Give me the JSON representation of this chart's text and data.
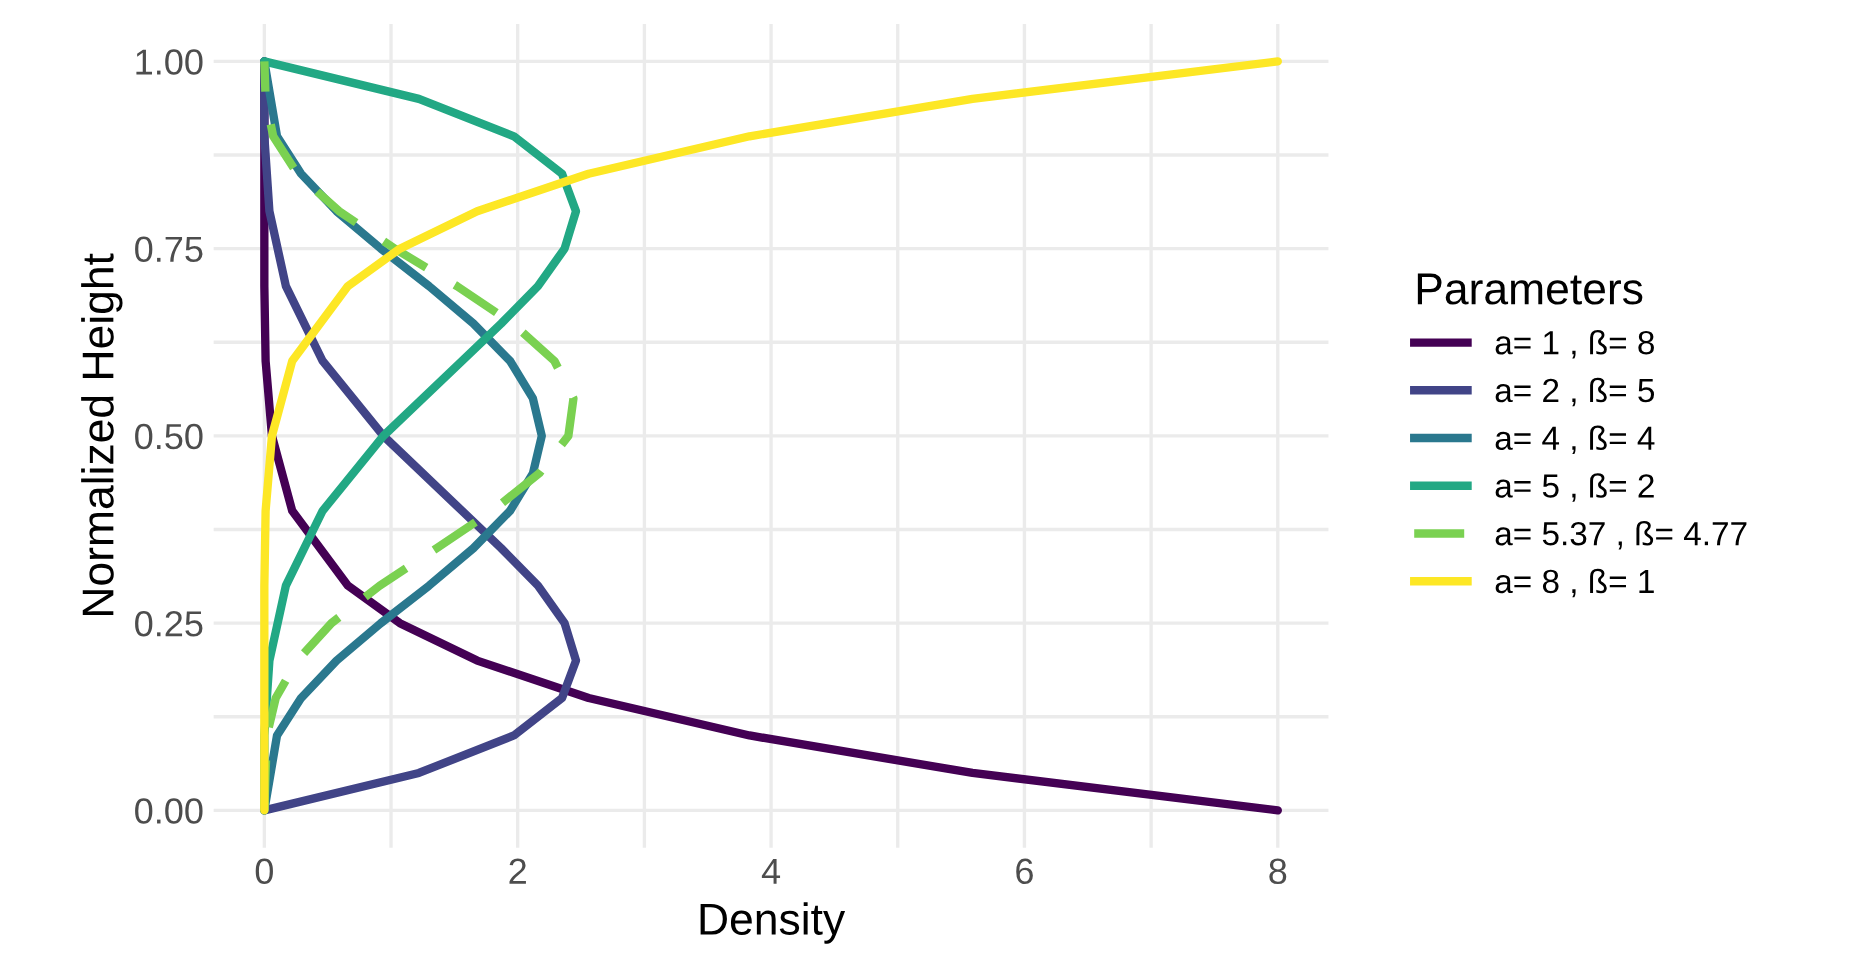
{
  "chart_data": {
    "type": "line",
    "xlabel": "Density",
    "ylabel": "Normalized Height",
    "legend_title": "Parameters",
    "legend": "right",
    "grid": true,
    "xlim": [
      -0.4,
      8.4
    ],
    "xticks": [
      0,
      {
        "value": 1,
        "label": null
      },
      2,
      {
        "value": 3,
        "label": null
      },
      4,
      {
        "value": 5,
        "label": null
      },
      6,
      {
        "value": 7,
        "label": null
      },
      8
    ],
    "ylim": [
      -0.05,
      1.05
    ],
    "yticks": [
      {
        "value": 0,
        "label": "0.00"
      },
      {
        "value": 0.125,
        "label": null
      },
      {
        "value": 0.25,
        "label": "0.25"
      },
      {
        "value": 0.375,
        "label": null
      },
      {
        "value": 0.5,
        "label": "0.50"
      },
      {
        "value": 0.625,
        "label": null
      },
      {
        "value": 0.75,
        "label": "0.75"
      },
      {
        "value": 0.875,
        "label": null
      },
      {
        "value": 1,
        "label": "1.00"
      }
    ],
    "series": [
      {
        "name": "a= 1 , ß= 8",
        "color": "#440154",
        "line_style": "solid",
        "x": [
          8,
          5.59,
          3.83,
          2.56,
          1.68,
          1.07,
          0.66,
          0.22,
          0.06,
          0.01,
          0,
          0,
          0
        ],
        "values": [
          0,
          0.05,
          0.1,
          0.15,
          0.2,
          0.25,
          0.3,
          0.4,
          0.5,
          0.6,
          0.7,
          0.8,
          1
        ]
      },
      {
        "name": "a= 2 , ß= 5",
        "color": "#414487",
        "line_style": "solid",
        "x": [
          0,
          1.22,
          1.97,
          2.35,
          2.46,
          2.37,
          2.16,
          1.87,
          1.56,
          0.94,
          0.46,
          0.17,
          0.04,
          0,
          0
        ],
        "values": [
          0,
          0.05,
          0.1,
          0.15,
          0.2,
          0.25,
          0.3,
          0.35,
          0.4,
          0.5,
          0.6,
          0.7,
          0.8,
          0.9,
          1
        ]
      },
      {
        "name": "a= 4 , ß= 4",
        "color": "#2A788E",
        "line_style": "solid",
        "x": [
          0,
          0.1,
          0.29,
          0.57,
          0.92,
          1.3,
          1.65,
          1.94,
          2.12,
          2.19,
          2.12,
          1.94,
          1.65,
          1.3,
          0.92,
          0.57,
          0.29,
          0.1,
          0
        ],
        "values": [
          0,
          0.1,
          0.15,
          0.2,
          0.25,
          0.3,
          0.35,
          0.4,
          0.45,
          0.5,
          0.55,
          0.6,
          0.65,
          0.7,
          0.75,
          0.8,
          0.85,
          0.9,
          1
        ]
      },
      {
        "name": "a= 5 , ß= 2",
        "color": "#22A884",
        "line_style": "solid",
        "x": [
          0,
          0,
          0.04,
          0.17,
          0.46,
          0.94,
          1.56,
          1.87,
          2.16,
          2.37,
          2.46,
          2.35,
          1.97,
          1.22,
          0
        ],
        "values": [
          0,
          0.1,
          0.2,
          0.3,
          0.4,
          0.5,
          0.6,
          0.65,
          0.7,
          0.75,
          0.8,
          0.85,
          0.9,
          0.95,
          1
        ]
      },
      {
        "name": "a= 5.37 , ß= 4.77",
        "color": "#7AD151",
        "line_style": "dashed",
        "x": [
          0,
          0.02,
          0.09,
          0.26,
          0.53,
          0.91,
          1.36,
          1.8,
          2.17,
          2.4,
          2.44,
          2.29,
          1.96,
          1.52,
          1.03,
          0.59,
          0.26,
          0.07,
          0.01,
          0
        ],
        "values": [
          0,
          0.1,
          0.15,
          0.2,
          0.25,
          0.3,
          0.35,
          0.4,
          0.45,
          0.5,
          0.55,
          0.6,
          0.65,
          0.7,
          0.75,
          0.8,
          0.85,
          0.9,
          0.95,
          1
        ]
      },
      {
        "name": "a= 8 , ß= 1",
        "color": "#FDE725",
        "line_style": "solid",
        "x": [
          0,
          0,
          0,
          0.01,
          0.06,
          0.22,
          0.66,
          1.07,
          1.68,
          2.56,
          3.83,
          5.59,
          8
        ],
        "values": [
          0,
          0.2,
          0.3,
          0.4,
          0.5,
          0.6,
          0.7,
          0.75,
          0.8,
          0.85,
          0.9,
          0.95,
          1
        ]
      }
    ]
  }
}
